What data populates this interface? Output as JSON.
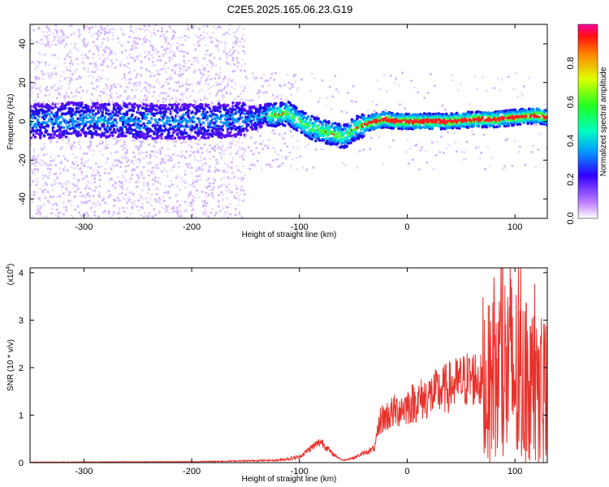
{
  "title": "C2E5.2025.165.06.23.G19",
  "chart_data": [
    {
      "type": "heatmap",
      "xlabel": "Height of straight line (km)",
      "ylabel": "Frequency (Hz)",
      "xlim": [
        -350,
        130
      ],
      "ylim": [
        -50,
        50
      ],
      "xticks": [
        "-300",
        "-200",
        "-100",
        "0",
        "100"
      ],
      "yticks": [
        "40",
        "20",
        "0",
        "-20",
        "-40"
      ],
      "colorbar": {
        "label": "Normalized spectral amplitude",
        "range": [
          0,
          1
        ],
        "ticks": [
          "0.0",
          "0.2",
          "0.4",
          "0.6",
          "0.8"
        ]
      },
      "ridge": {
        "x": [
          -350,
          -300,
          -250,
          -200,
          -150,
          -130,
          -110,
          -100,
          -90,
          -80,
          -70,
          -60,
          -55,
          -50,
          -40,
          -30,
          -20,
          -10,
          0,
          20,
          40,
          60,
          80,
          100,
          120,
          130
        ],
        "y": [
          0,
          1,
          0,
          0,
          1,
          3,
          4,
          0,
          -3,
          -5,
          -6,
          -8,
          -7,
          -4,
          -2,
          0,
          1,
          0,
          0,
          0,
          0,
          1,
          1,
          2,
          3,
          2
        ]
      }
    },
    {
      "type": "line",
      "xlabel": "Height of straight line (km)",
      "ylabel": "SNR (10 * v/v)",
      "scale_label": "(x10",
      "scale_exp": "4",
      "xlim": [
        -350,
        130
      ],
      "ylim": [
        0,
        4.1
      ],
      "xticks": [
        "-300",
        "-200",
        "-100",
        "0",
        "100"
      ],
      "yticks": [
        "0",
        "1",
        "2",
        "3",
        "4"
      ],
      "color": "#e8322c",
      "trend": {
        "x": [
          -350,
          -200,
          -120,
          -100,
          -90,
          -80,
          -70,
          -60,
          -50,
          -40,
          -30,
          -25,
          -10,
          0,
          20,
          40,
          55,
          65,
          75,
          85,
          95,
          105,
          115,
          125,
          130
        ],
        "y": [
          0.01,
          0.02,
          0.05,
          0.12,
          0.3,
          0.45,
          0.2,
          0.05,
          0.1,
          0.2,
          0.3,
          0.9,
          1.1,
          1.2,
          1.4,
          1.6,
          1.75,
          1.8,
          1.5,
          1.8,
          2.0,
          1.6,
          1.5,
          1.4,
          1.3
        ]
      }
    }
  ]
}
